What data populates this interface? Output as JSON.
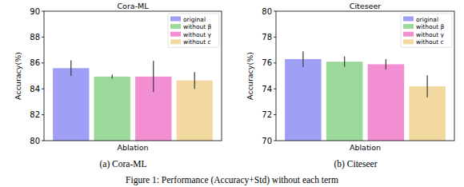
{
  "chart_data": [
    {
      "type": "bar",
      "title": "Cora-ML",
      "caption": "(a) Cora-ML",
      "x_label": "Ablation",
      "y_label": "Accuracy(%)",
      "categories": [
        null
      ],
      "series": [
        {
          "name": "original",
          "color": "#9f9ff5",
          "values": [
            85.6
          ],
          "errors": [
            0.6
          ]
        },
        {
          "name": "without β",
          "color": "#9ad99a",
          "values": [
            84.95
          ],
          "errors": [
            0.15
          ]
        },
        {
          "name": "without γ",
          "color": "#f28fd2",
          "values": [
            84.95
          ],
          "errors": [
            1.2
          ]
        },
        {
          "name": "without c",
          "color": "#f2d9a0",
          "values": [
            84.65
          ],
          "errors": [
            0.65
          ]
        }
      ],
      "ylim": [
        80,
        90
      ],
      "yticks": [
        80,
        82,
        84,
        86,
        88,
        90
      ],
      "grid": false,
      "legend": "upper right",
      "tick_labels": "y"
    },
    {
      "type": "bar",
      "title": "Citeseer",
      "caption": "(b) Citeseer",
      "x_label": "Ablation",
      "y_label": "Accuracy(%)",
      "categories": [
        null
      ],
      "series": [
        {
          "name": "original",
          "color": "#9f9ff5",
          "values": [
            76.3
          ],
          "errors": [
            0.6
          ]
        },
        {
          "name": "without β",
          "color": "#9ad99a",
          "values": [
            76.1
          ],
          "errors": [
            0.4
          ]
        },
        {
          "name": "without γ",
          "color": "#f28fd2",
          "values": [
            75.9
          ],
          "errors": [
            0.4
          ]
        },
        {
          "name": "without c",
          "color": "#f2d9a0",
          "values": [
            74.2
          ],
          "errors": [
            0.85
          ]
        }
      ],
      "ylim": [
        70,
        80
      ],
      "yticks": [
        70,
        72,
        74,
        76,
        78,
        80
      ],
      "grid": false,
      "legend": "upper right",
      "tick_labels": "y"
    }
  ],
  "caption": "Figure 1: Performance (Accuracy+Std) without each term"
}
